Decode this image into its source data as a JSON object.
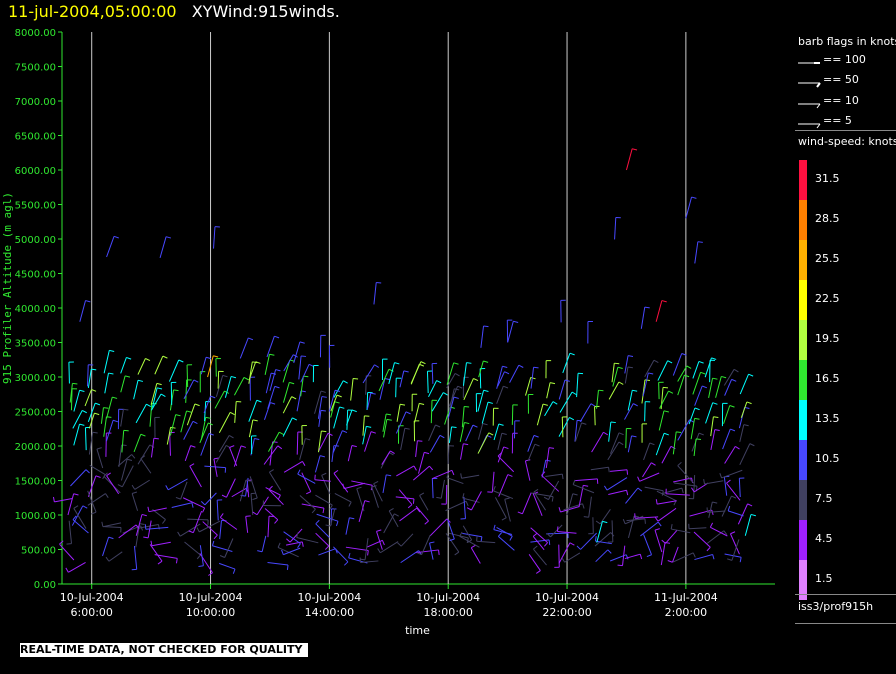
{
  "header": {
    "datetime": "11-jul-2004,05:00:00",
    "title": "XYWind:915winds."
  },
  "footer": {
    "notice": "REAL-TIME DATA, NOT CHECKED FOR QUALITY"
  },
  "legend": {
    "barb_title": "barb flags in knots",
    "barbs": [
      "== 100",
      "== 50",
      "== 10",
      "== 5"
    ],
    "speed_title": "wind-speed: knots",
    "speed_labels": [
      "31.5",
      "28.5",
      "25.5",
      "22.5",
      "19.5",
      "16.5",
      "13.5",
      "10.5",
      "7.5",
      "4.5",
      "1.5"
    ],
    "speed_colors": [
      "#ff1040",
      "#ff8000",
      "#ffb000",
      "#ffff00",
      "#b0ff40",
      "#30e830",
      "#00ffff",
      "#4848ff",
      "#404060",
      "#a020ff",
      "#e080ff"
    ],
    "source": "iss3/prof915h"
  },
  "chart_data": {
    "type": "scatter",
    "title": "",
    "ylabel": "915 Profiler Altitude (m agl)",
    "xlabel": "time",
    "ylim": [
      0,
      8000
    ],
    "yticks": [
      "0.00",
      "500.00",
      "1000.00",
      "1500.00",
      "2000.00",
      "2500.00",
      "3000.00",
      "3500.00",
      "4000.00",
      "4500.00",
      "5000.00",
      "5500.00",
      "6000.00",
      "6500.00",
      "7000.00",
      "7500.00",
      "8000.00"
    ],
    "xticks": [
      {
        "date": "10-Jul-2004",
        "time": "6:00:00"
      },
      {
        "date": "10-Jul-2004",
        "time": "10:00:00"
      },
      {
        "date": "10-Jul-2004",
        "time": "14:00:00"
      },
      {
        "date": "10-Jul-2004",
        "time": "18:00:00"
      },
      {
        "date": "10-Jul-2004",
        "time": "22:00:00"
      },
      {
        "date": "11-Jul-2004",
        "time": "2:00:00"
      }
    ],
    "xrange_hours": [
      5.0,
      29.0
    ],
    "grid": "vertical",
    "samples": [
      {
        "t": 5.2,
        "alt": 1000,
        "speed": 4.5
      },
      {
        "t": 5.4,
        "alt": 2500,
        "speed": 13.5
      },
      {
        "t": 5.6,
        "alt": 3800,
        "speed": 10.5
      },
      {
        "t": 6.5,
        "alt": 2400,
        "speed": 16.5
      },
      {
        "t": 7.0,
        "alt": 1500,
        "speed": 7.5
      },
      {
        "t": 7.5,
        "alt": 700,
        "speed": 4.5
      },
      {
        "t": 8.0,
        "alt": 2600,
        "speed": 19.5
      },
      {
        "t": 9.0,
        "alt": 2200,
        "speed": 16.5
      },
      {
        "t": 9.9,
        "alt": 3000,
        "speed": 25.5
      },
      {
        "t": 10.5,
        "alt": 2700,
        "speed": 13.5
      },
      {
        "t": 11.0,
        "alt": 1200,
        "speed": 7.5
      },
      {
        "t": 12.0,
        "alt": 2800,
        "speed": 10.5
      },
      {
        "t": 13.0,
        "alt": 1800,
        "speed": 7.5
      },
      {
        "t": 14.0,
        "alt": 2500,
        "speed": 10.5
      },
      {
        "t": 15.0,
        "alt": 900,
        "speed": 4.5
      },
      {
        "t": 16.0,
        "alt": 2900,
        "speed": 13.5
      },
      {
        "t": 17.0,
        "alt": 1600,
        "speed": 4.5
      },
      {
        "t": 18.0,
        "alt": 2400,
        "speed": 10.5
      },
      {
        "t": 19.0,
        "alt": 2500,
        "speed": 13.5
      },
      {
        "t": 20.0,
        "alt": 3500,
        "speed": 10.5
      },
      {
        "t": 21.0,
        "alt": 2300,
        "speed": 19.5
      },
      {
        "t": 22.0,
        "alt": 1000,
        "speed": 7.5
      },
      {
        "t": 23.0,
        "alt": 600,
        "speed": 13.5
      },
      {
        "t": 24.0,
        "alt": 6000,
        "speed": 31.5
      },
      {
        "t": 25.0,
        "alt": 3800,
        "speed": 31.5
      },
      {
        "t": 26.0,
        "alt": 5300,
        "speed": 10.5
      },
      {
        "t": 27.0,
        "alt": 2700,
        "speed": 16.5
      },
      {
        "t": 28.0,
        "alt": 700,
        "speed": 13.5
      }
    ]
  }
}
